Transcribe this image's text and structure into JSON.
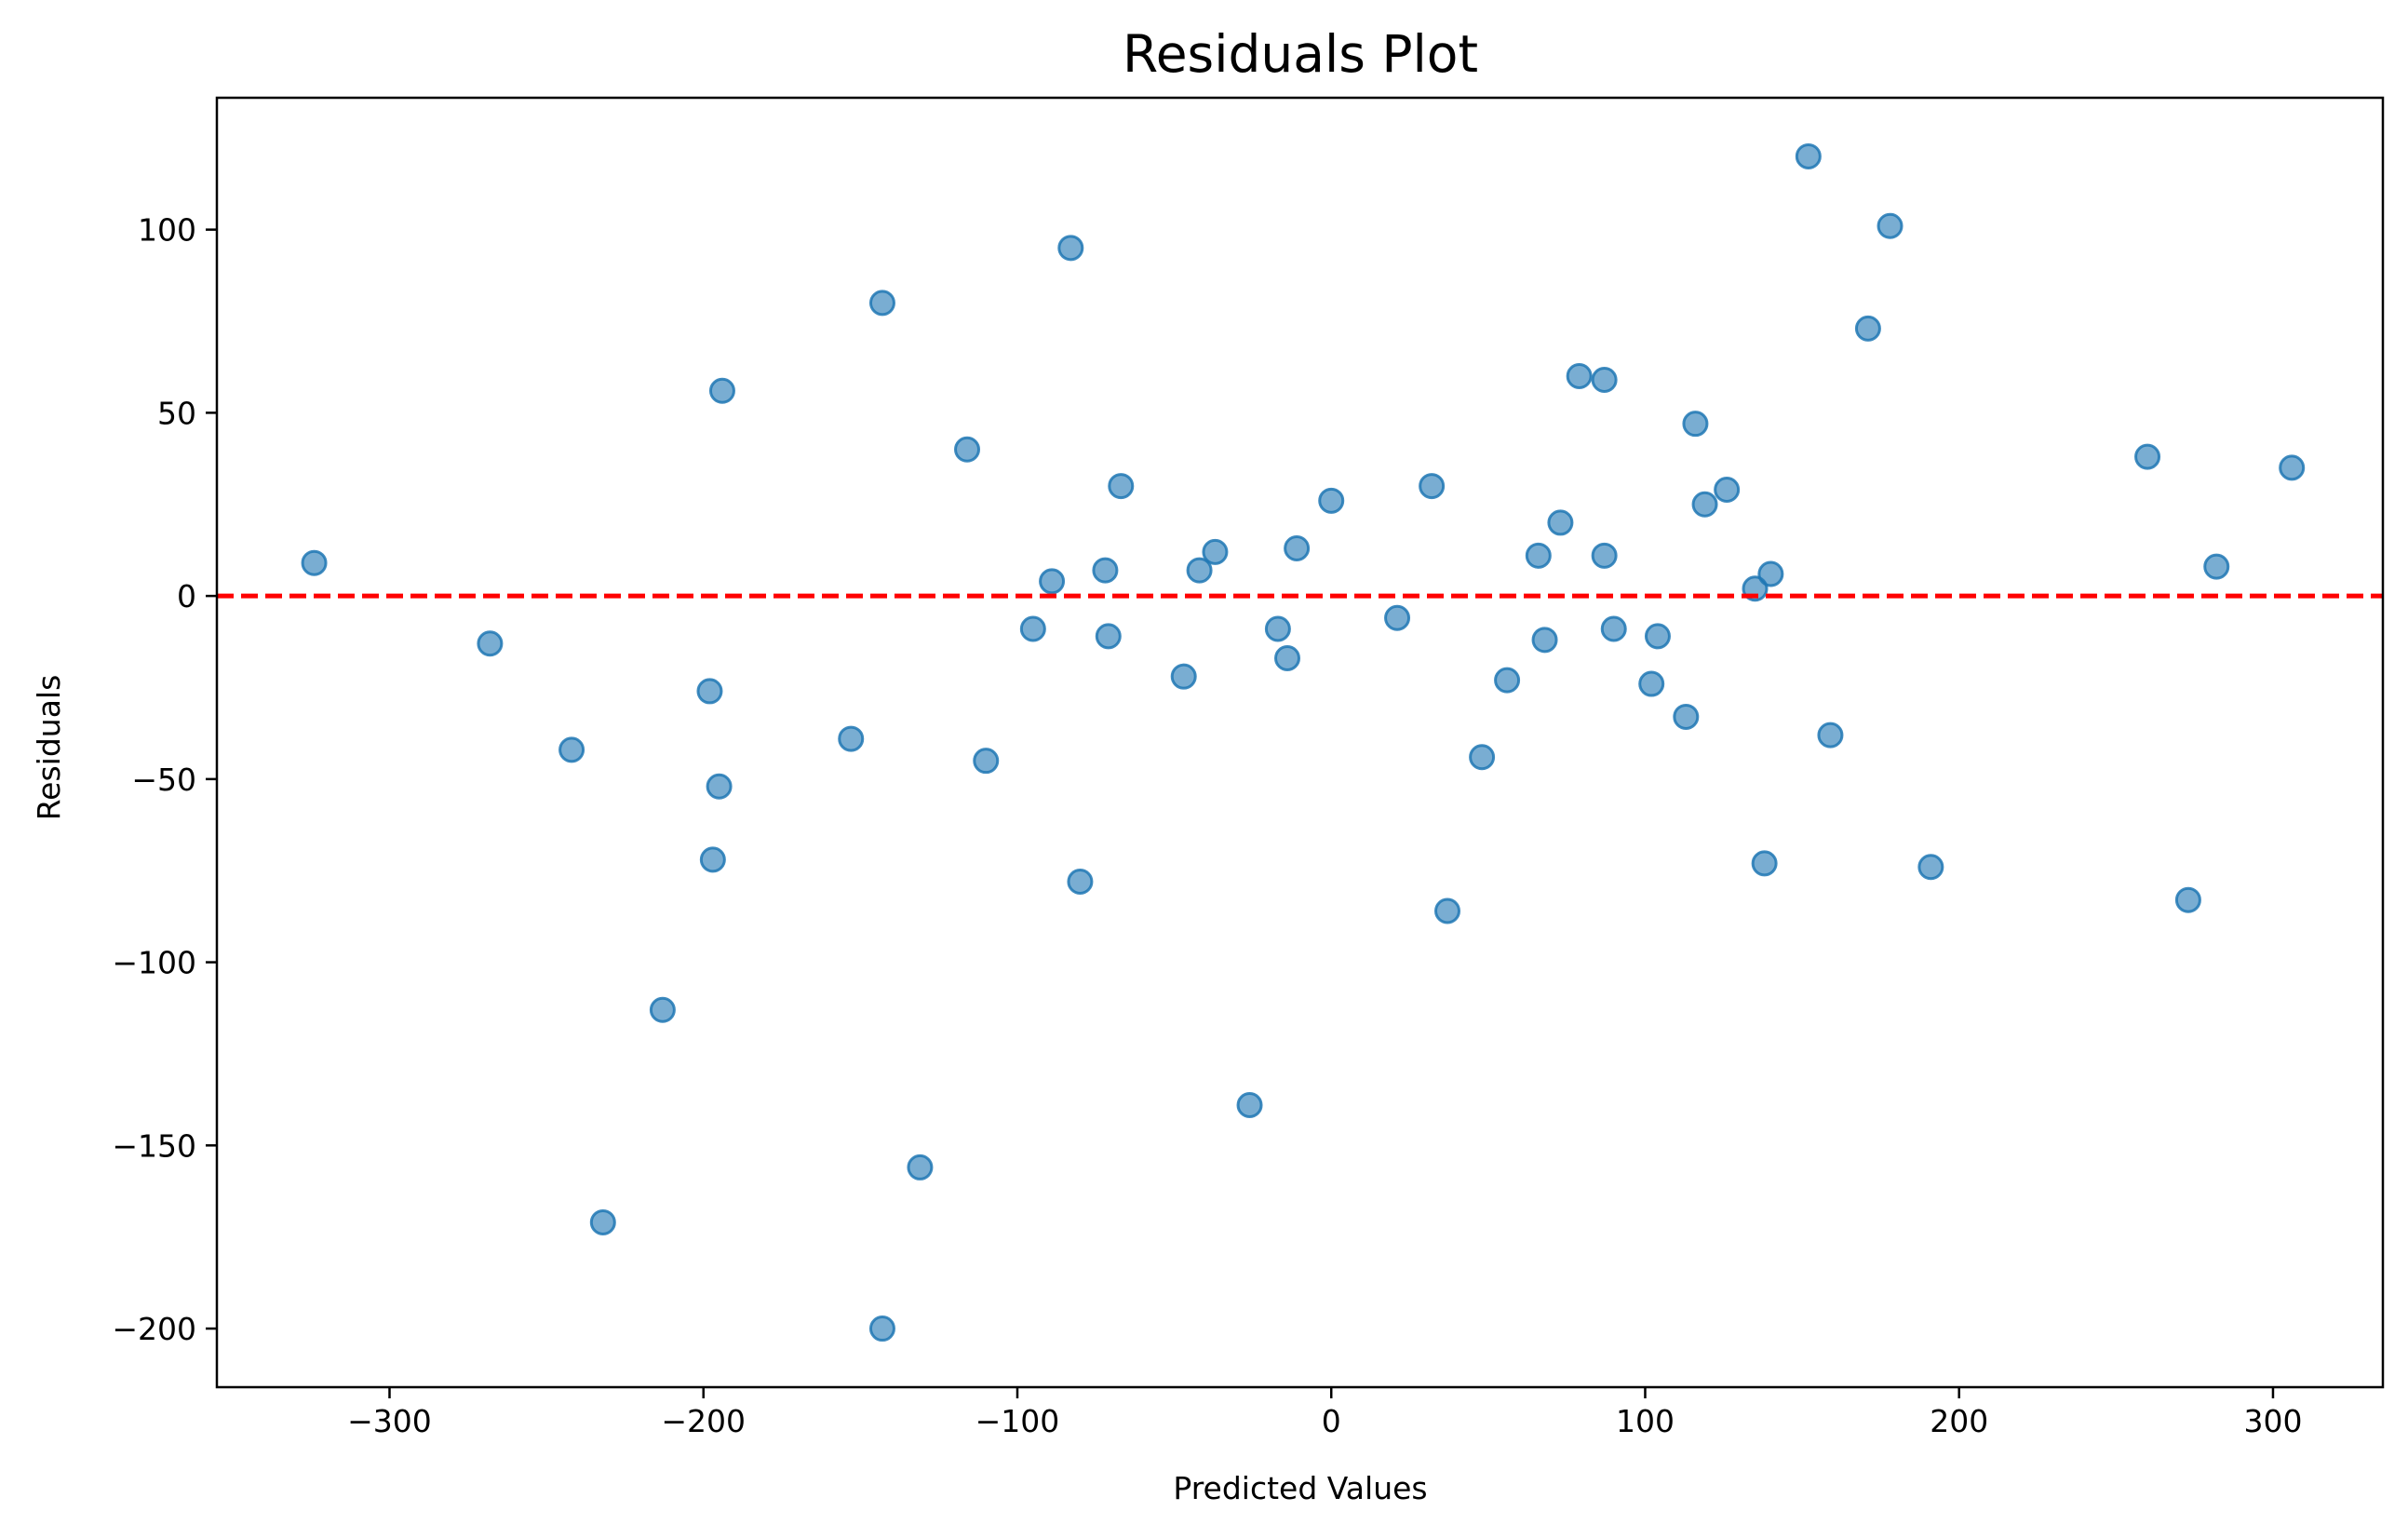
{
  "chart_data": {
    "type": "scatter",
    "title": "Residuals Plot",
    "xlabel": "Predicted Values",
    "ylabel": "Residuals",
    "xlim": [
      -355,
      335
    ],
    "ylim": [
      -216,
      136
    ],
    "xticks": [
      -300,
      -200,
      -100,
      0,
      100,
      200,
      300
    ],
    "yticks": [
      -200,
      -150,
      -100,
      -50,
      0,
      50,
      100
    ],
    "grid": false,
    "legend": "none",
    "reference_line": {
      "y": 0,
      "style": "dashed",
      "color": "#ff0000"
    },
    "point_color": "#1f77b4",
    "point_alpha": 0.6,
    "points": [
      {
        "x": -324,
        "y": 9
      },
      {
        "x": -268,
        "y": -13
      },
      {
        "x": -242,
        "y": -42
      },
      {
        "x": -232,
        "y": -171
      },
      {
        "x": -213,
        "y": -113
      },
      {
        "x": -198,
        "y": -26
      },
      {
        "x": -197,
        "y": -72
      },
      {
        "x": -195,
        "y": -52
      },
      {
        "x": -194,
        "y": 56
      },
      {
        "x": -153,
        "y": -39
      },
      {
        "x": -143,
        "y": 80
      },
      {
        "x": -143,
        "y": -200
      },
      {
        "x": -131,
        "y": -156
      },
      {
        "x": -116,
        "y": 40
      },
      {
        "x": -110,
        "y": -45
      },
      {
        "x": -95,
        "y": -9
      },
      {
        "x": -89,
        "y": 4
      },
      {
        "x": -83,
        "y": 95
      },
      {
        "x": -80,
        "y": -78
      },
      {
        "x": -72,
        "y": 7
      },
      {
        "x": -71,
        "y": -11
      },
      {
        "x": -67,
        "y": 30
      },
      {
        "x": -47,
        "y": -22
      },
      {
        "x": -42,
        "y": 7
      },
      {
        "x": -37,
        "y": 12
      },
      {
        "x": -26,
        "y": -139
      },
      {
        "x": -17,
        "y": -9
      },
      {
        "x": -14,
        "y": -17
      },
      {
        "x": -11,
        "y": 13
      },
      {
        "x": 0,
        "y": 26
      },
      {
        "x": 21,
        "y": -6
      },
      {
        "x": 32,
        "y": 30
      },
      {
        "x": 37,
        "y": -86
      },
      {
        "x": 48,
        "y": -44
      },
      {
        "x": 56,
        "y": -23
      },
      {
        "x": 66,
        "y": 11
      },
      {
        "x": 68,
        "y": -12
      },
      {
        "x": 73,
        "y": 20
      },
      {
        "x": 79,
        "y": 60
      },
      {
        "x": 87,
        "y": 59
      },
      {
        "x": 87,
        "y": 11
      },
      {
        "x": 90,
        "y": -9
      },
      {
        "x": 102,
        "y": -24
      },
      {
        "x": 104,
        "y": -11
      },
      {
        "x": 113,
        "y": -33
      },
      {
        "x": 116,
        "y": 47
      },
      {
        "x": 119,
        "y": 25
      },
      {
        "x": 126,
        "y": 29
      },
      {
        "x": 135,
        "y": 2
      },
      {
        "x": 138,
        "y": -73
      },
      {
        "x": 140,
        "y": 6
      },
      {
        "x": 152,
        "y": 120
      },
      {
        "x": 159,
        "y": -38
      },
      {
        "x": 171,
        "y": 73
      },
      {
        "x": 178,
        "y": 101
      },
      {
        "x": 191,
        "y": -74
      },
      {
        "x": 260,
        "y": 38
      },
      {
        "x": 273,
        "y": -83
      },
      {
        "x": 282,
        "y": 8
      },
      {
        "x": 306,
        "y": 35
      }
    ]
  }
}
